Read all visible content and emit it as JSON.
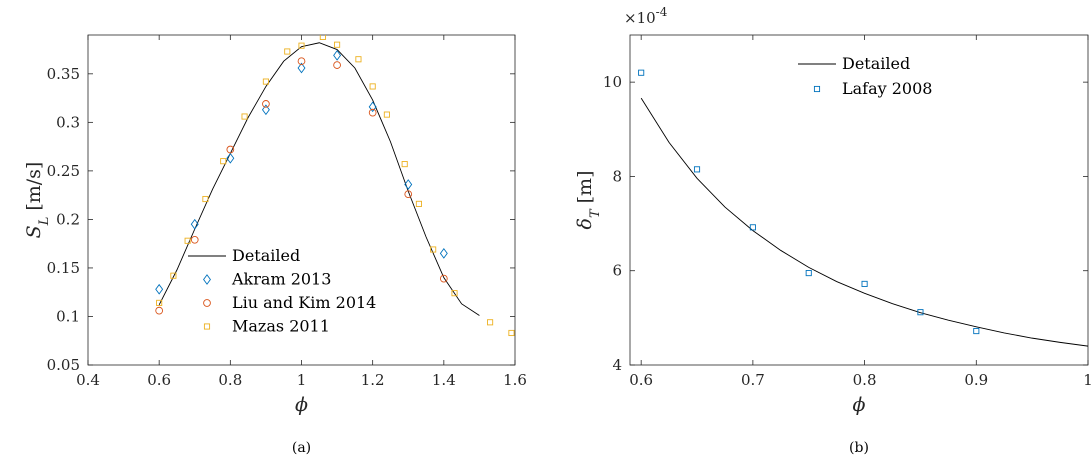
{
  "chart_data": [
    {
      "type": "scatter",
      "caption": "(a)",
      "xlabel": "ϕ",
      "ylabel_main": "S",
      "ylabel_sub": "L",
      "ylabel_unit": "[m/s]",
      "xlim": [
        0.4,
        1.6
      ],
      "ylim": [
        0.05,
        0.39
      ],
      "xticks": [
        "0.4",
        "0.6",
        "0.8",
        "1",
        "1.2",
        "1.4",
        "1.6"
      ],
      "yticks": [
        "0.05",
        "0.1",
        "0.15",
        "0.2",
        "0.25",
        "0.3",
        "0.35"
      ],
      "legend_position": "center-bottom",
      "series": [
        {
          "name": "Detailed",
          "kind": "line",
          "color": "#000000",
          "x": [
            0.6,
            0.65,
            0.7,
            0.75,
            0.8,
            0.85,
            0.9,
            0.95,
            1.0,
            1.05,
            1.1,
            1.15,
            1.2,
            1.25,
            1.3,
            1.35,
            1.4,
            1.45,
            1.5
          ],
          "y": [
            0.112,
            0.148,
            0.19,
            0.231,
            0.268,
            0.305,
            0.337,
            0.363,
            0.378,
            0.382,
            0.375,
            0.356,
            0.323,
            0.28,
            0.229,
            0.182,
            0.14,
            0.113,
            0.101
          ]
        },
        {
          "name": "Akram 2013",
          "kind": "marker",
          "marker": "diamond",
          "color": "#0072BD",
          "x": [
            0.6,
            0.7,
            0.8,
            0.9,
            1.0,
            1.1,
            1.2,
            1.3,
            1.4
          ],
          "y": [
            0.128,
            0.195,
            0.263,
            0.313,
            0.356,
            0.369,
            0.316,
            0.236,
            0.165
          ]
        },
        {
          "name": "Liu and Kim 2014",
          "kind": "marker",
          "marker": "circle",
          "color": "#D95319",
          "x": [
            0.6,
            0.7,
            0.8,
            0.9,
            1.0,
            1.1,
            1.2,
            1.3,
            1.4
          ],
          "y": [
            0.106,
            0.179,
            0.272,
            0.319,
            0.363,
            0.359,
            0.31,
            0.226,
            0.139
          ]
        },
        {
          "name": "Mazas 2011",
          "kind": "marker",
          "marker": "square",
          "color": "#EDB120",
          "x": [
            0.6,
            0.64,
            0.68,
            0.73,
            0.78,
            0.84,
            0.9,
            0.96,
            1.0,
            1.06,
            1.1,
            1.16,
            1.2,
            1.24,
            1.29,
            1.33,
            1.37,
            1.43,
            1.53,
            1.59
          ],
          "y": [
            0.114,
            0.142,
            0.178,
            0.221,
            0.26,
            0.306,
            0.342,
            0.373,
            0.379,
            0.388,
            0.38,
            0.365,
            0.337,
            0.308,
            0.257,
            0.216,
            0.169,
            0.124,
            0.094,
            0.083
          ]
        }
      ]
    },
    {
      "type": "scatter",
      "caption": "(b)",
      "xlabel": "ϕ",
      "ylabel_main": "δ",
      "ylabel_sub": "T",
      "ylabel_unit": "[m]",
      "exponent_prefix": "×10",
      "exponent_power": "-4",
      "xlim": [
        0.59,
        1.0
      ],
      "ylim": [
        4,
        11
      ],
      "xticks": [
        "0.6",
        "0.7",
        "0.8",
        "0.9",
        "1"
      ],
      "yticks": [
        "4",
        "6",
        "8",
        "10"
      ],
      "legend_position": "top-center",
      "series": [
        {
          "name": "Detailed",
          "kind": "line",
          "color": "#000000",
          "x": [
            0.6,
            0.625,
            0.65,
            0.675,
            0.7,
            0.725,
            0.75,
            0.775,
            0.8,
            0.825,
            0.85,
            0.875,
            0.9,
            0.925,
            0.95,
            0.975,
            1.0
          ],
          "y": [
            9.66,
            8.72,
            7.96,
            7.35,
            6.85,
            6.43,
            6.07,
            5.77,
            5.52,
            5.3,
            5.11,
            4.95,
            4.81,
            4.68,
            4.57,
            4.48,
            4.4
          ]
        },
        {
          "name": "Lafay 2008",
          "kind": "marker",
          "marker": "square",
          "color": "#0072BD",
          "x": [
            0.6,
            0.65,
            0.7,
            0.75,
            0.8,
            0.85,
            0.9
          ],
          "y": [
            10.2,
            8.15,
            6.92,
            5.95,
            5.72,
            5.12,
            4.72
          ]
        }
      ]
    }
  ]
}
